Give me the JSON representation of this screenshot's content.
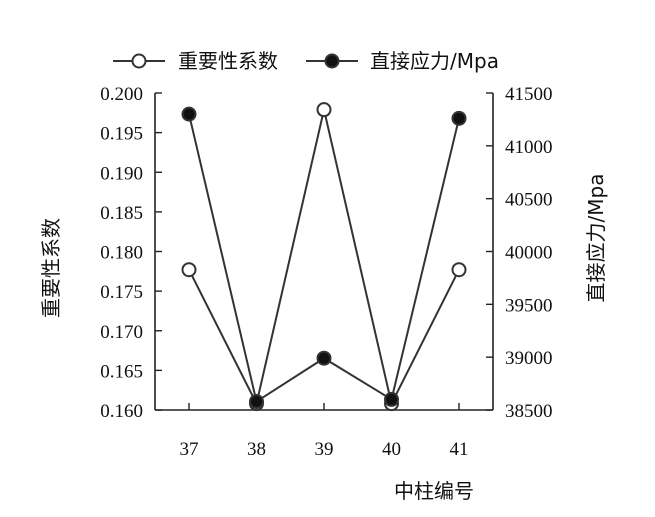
{
  "chart_data": {
    "type": "line",
    "title": "",
    "xlabel": "中柱编号",
    "ylabel_left": "重要性系数",
    "ylabel_right": "直接应力/Mpa",
    "categories": [
      "37",
      "38",
      "39",
      "40",
      "41"
    ],
    "y_left": {
      "min": 0.16,
      "max": 0.2,
      "ticks": [
        "0.200",
        "0.195",
        "0.190",
        "0.185",
        "0.180",
        "0.175",
        "0.170",
        "0.165",
        "0.160"
      ]
    },
    "y_right": {
      "min": 38500,
      "max": 41500,
      "ticks": [
        "41500",
        "41000",
        "40500",
        "40000",
        "39500",
        "39000",
        "38500"
      ]
    },
    "legend_position": "top",
    "grid": false,
    "series": [
      {
        "name": "重要性系数",
        "axis": "left",
        "marker": "open-circle",
        "color": "#333333",
        "values": [
          0.1777,
          0.1608,
          0.1979,
          0.1608,
          0.1777
        ]
      },
      {
        "name": "直接应力/Mpa",
        "axis": "right",
        "marker": "filled-circle",
        "color": "#111111",
        "values": [
          41300,
          38580,
          38990,
          38600,
          41260
        ]
      }
    ]
  }
}
